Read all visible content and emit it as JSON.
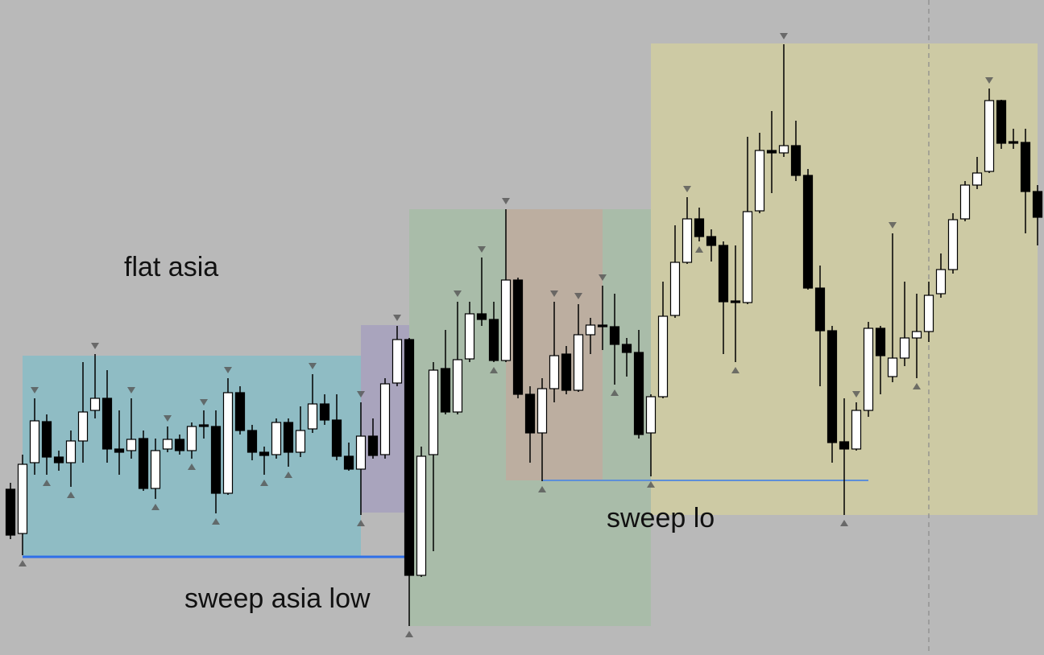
{
  "chart_data": {
    "type": "candlestick",
    "ylim": [
      186,
      1000
    ],
    "up_color": "#ffffff",
    "down_color": "#000000",
    "open": [
      392,
      337,
      425,
      476,
      432,
      425,
      452,
      490,
      505,
      442,
      440,
      455,
      393,
      442,
      454,
      440,
      472,
      470,
      387,
      512,
      465,
      438,
      435,
      475,
      438,
      467,
      498,
      478,
      433,
      417,
      458,
      435,
      524,
      578,
      285,
      435,
      542,
      488,
      554,
      610,
      603,
      552,
      652,
      510,
      462,
      517,
      560,
      515,
      584,
      596,
      594,
      572,
      562,
      462,
      507,
      608,
      674,
      728,
      706,
      695,
      626,
      624,
      738,
      813,
      810,
      819,
      782,
      642,
      589,
      451,
      442,
      490,
      592,
      532,
      555,
      580,
      588,
      635,
      665,
      728,
      770,
      787,
      875,
      824,
      823,
      762
    ],
    "high": [
      400,
      435,
      505,
      485,
      440,
      465,
      550,
      560,
      540,
      490,
      505,
      465,
      455,
      470,
      460,
      475,
      490,
      490,
      530,
      520,
      472,
      445,
      480,
      480,
      495,
      535,
      510,
      510,
      450,
      500,
      480,
      530,
      595,
      580,
      445,
      550,
      590,
      625,
      625,
      680,
      625,
      740,
      655,
      520,
      530,
      625,
      570,
      622,
      605,
      645,
      635,
      580,
      590,
      510,
      650,
      720,
      755,
      742,
      715,
      700,
      695,
      830,
      835,
      862,
      945,
      850,
      790,
      670,
      595,
      505,
      500,
      600,
      595,
      710,
      650,
      635,
      650,
      685,
      735,
      775,
      805,
      890,
      876,
      840,
      840,
      770
    ],
    "low": [
      330,
      310,
      410,
      410,
      415,
      395,
      425,
      480,
      425,
      410,
      430,
      390,
      380,
      438,
      435,
      430,
      455,
      362,
      385,
      460,
      428,
      410,
      430,
      420,
      432,
      462,
      472,
      428,
      415,
      360,
      430,
      430,
      520,
      222,
      283,
      315,
      485,
      485,
      550,
      595,
      550,
      550,
      505,
      425,
      402,
      500,
      510,
      513,
      560,
      565,
      522,
      532,
      455,
      408,
      505,
      605,
      672,
      700,
      675,
      560,
      550,
      622,
      735,
      760,
      805,
      775,
      640,
      520,
      425,
      360,
      440,
      482,
      510,
      525,
      545,
      530,
      575,
      630,
      660,
      725,
      765,
      785,
      815,
      815,
      710,
      695
    ],
    "close": [
      335,
      423,
      477,
      432,
      425,
      452,
      488,
      505,
      442,
      438,
      454,
      393,
      440,
      454,
      440,
      470,
      470,
      387,
      512,
      465,
      438,
      434,
      475,
      438,
      465,
      498,
      478,
      433,
      417,
      458,
      434,
      523,
      578,
      285,
      433,
      540,
      488,
      553,
      610,
      603,
      552,
      652,
      510,
      462,
      517,
      558,
      515,
      584,
      596,
      594,
      572,
      562,
      460,
      507,
      607,
      674,
      728,
      706,
      695,
      625,
      624,
      737,
      813,
      810,
      819,
      782,
      642,
      589,
      450,
      442,
      490,
      592,
      558,
      555,
      580,
      588,
      633,
      665,
      727,
      770,
      785,
      875,
      822,
      822,
      762,
      730
    ],
    "fractal_highs": [
      2,
      7,
      10,
      13,
      16,
      18,
      25,
      29,
      32,
      37,
      39,
      41,
      45,
      47,
      49,
      56,
      64,
      70,
      73,
      81
    ],
    "fractal_lows": [
      1,
      3,
      5,
      12,
      15,
      17,
      21,
      23,
      29,
      33,
      40,
      44,
      50,
      53,
      57,
      60,
      69,
      75
    ],
    "zones": [
      {
        "from": 1,
        "to": 29,
        "top": 558,
        "bottom": 308,
        "color": "#8fbcc4"
      },
      {
        "from": 29,
        "to": 33,
        "top": 596,
        "bottom": 363,
        "color": "#a9a4bd"
      },
      {
        "from": 33,
        "to": 53,
        "top": 740,
        "bottom": 222,
        "color": "#a9bca9"
      },
      {
        "from": 41,
        "to": 49,
        "top": 740,
        "bottom": 403,
        "color": "#bcaea0"
      },
      {
        "from": 53,
        "to": 85,
        "top": 946,
        "bottom": 360,
        "color": "#cdcaa4"
      }
    ],
    "levels": [
      {
        "from": 1,
        "to": 33,
        "value": 308,
        "color": "#2f6fe8"
      },
      {
        "from": 44,
        "to": 71,
        "value": 403,
        "color": "#5d8fd8"
      }
    ],
    "session_line": 76,
    "annotations": [
      "flat asia",
      "sweep asia low",
      "sweep lo"
    ]
  }
}
